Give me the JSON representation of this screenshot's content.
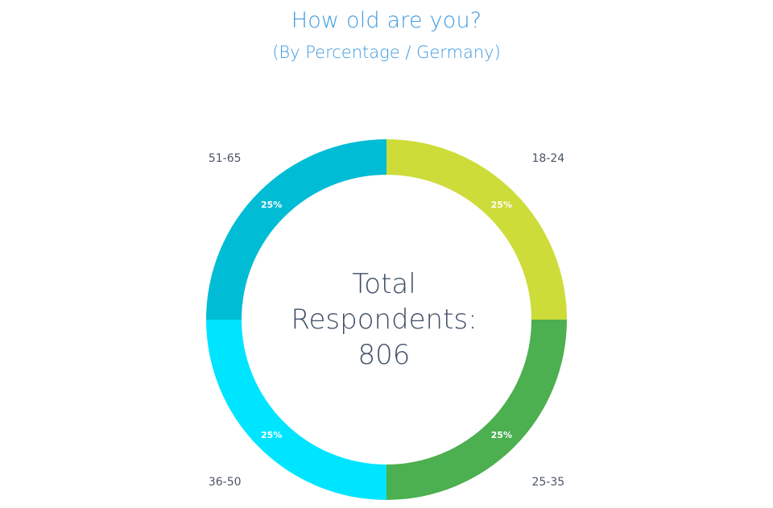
{
  "chart_data": {
    "type": "pie",
    "title": "How old are you?",
    "subtitle": "(By Percentage / Germany)",
    "center_label_lines": [
      "Total",
      "Respondents:",
      "806"
    ],
    "categories": [
      "18-24",
      "25-35",
      "36-50",
      "51-65"
    ],
    "values": [
      25,
      25,
      25,
      25
    ],
    "value_labels": [
      "25%",
      "25%",
      "25%",
      "25%"
    ],
    "colors": [
      "#cddc39",
      "#4caf50",
      "#00e5ff",
      "#00bcd4"
    ],
    "donut": true
  }
}
